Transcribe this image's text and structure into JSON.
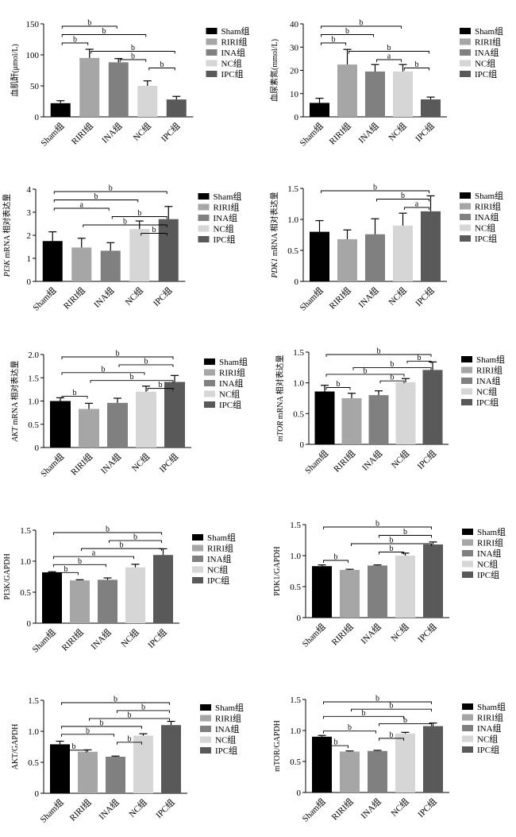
{
  "legend_items": [
    "Sham组",
    "RIRI组",
    "INA组",
    "NC组",
    "IPC组"
  ],
  "colors": [
    "#000000",
    "#a6a6a6",
    "#808080",
    "#d6d6d6",
    "#595959"
  ],
  "chart_data": [
    {
      "type": "bar",
      "ylabel": "血肌酐(μmol/L)",
      "categories": [
        "Sham组",
        "RIRI组",
        "INA组",
        "NC组",
        "IPC组"
      ],
      "values": [
        22,
        95,
        88,
        50,
        28
      ],
      "errors": [
        4,
        14,
        6,
        8,
        5
      ],
      "ylim": [
        0,
        150
      ],
      "yticks": [
        0,
        50,
        100,
        150
      ],
      "legend": [
        "Sham组",
        "RIRI组",
        "INA组",
        "NC组",
        "IPC组"
      ],
      "annotations": [
        {
          "from": 0,
          "to": 2,
          "label": "b"
        },
        {
          "from": 0,
          "to": 3,
          "label": "b"
        },
        {
          "from": 0,
          "to": 1,
          "label": "b"
        },
        {
          "from": 1,
          "to": 4,
          "label": "b"
        },
        {
          "from": 2,
          "to": 3,
          "label": "b"
        },
        {
          "from": 3,
          "to": 4,
          "label": "b"
        }
      ]
    },
    {
      "type": "bar",
      "ylabel": "血尿素氮(mmol/L)",
      "categories": [
        "Sham组",
        "RIRI组",
        "INA组",
        "NC组",
        "IPC组"
      ],
      "values": [
        6,
        22.5,
        19.5,
        19.5,
        7.5
      ],
      "errors": [
        2,
        6.5,
        3,
        3,
        1
      ],
      "ylim": [
        0,
        40
      ],
      "yticks": [
        0,
        10,
        20,
        30,
        40
      ],
      "legend": [
        "Sham组",
        "RIRI组",
        "INA组",
        "NC组",
        "IPC组"
      ],
      "annotations": [
        {
          "from": 0,
          "to": 3,
          "label": "b"
        },
        {
          "from": 0,
          "to": 2,
          "label": "b"
        },
        {
          "from": 0,
          "to": 1,
          "label": "b"
        },
        {
          "from": 1,
          "to": 4,
          "label": "b"
        },
        {
          "from": 2,
          "to": 3,
          "label": "a"
        },
        {
          "from": 3,
          "to": 4,
          "label": "b"
        }
      ]
    },
    {
      "type": "bar",
      "ylabel": "PI3K mRNA 相对表达量",
      "ylabel_italic": "PI3K",
      "ylabel_rest": " mRNA 相对表达量",
      "categories": [
        "Sham组",
        "RIRI组",
        "INA组",
        "NC组",
        "IPC组"
      ],
      "values": [
        1.75,
        1.47,
        1.33,
        2.27,
        2.7
      ],
      "errors": [
        0.4,
        0.4,
        0.35,
        0.35,
        0.55
      ],
      "ylim": [
        0,
        4
      ],
      "yticks": [
        0,
        1,
        2,
        3,
        4
      ],
      "legend": [
        "Sham组",
        "RIRI组",
        "INA组",
        "NC组",
        "IPC组"
      ],
      "annotations": [
        {
          "from": 0,
          "to": 4,
          "label": "b"
        },
        {
          "from": 0,
          "to": 3,
          "label": "b"
        },
        {
          "from": 0,
          "to": 2,
          "label": "a"
        },
        {
          "from": 2,
          "to": 4,
          "label": "b"
        },
        {
          "from": 1,
          "to": 4,
          "label": "b"
        },
        {
          "from": 3,
          "to": 4,
          "label": "b"
        }
      ]
    },
    {
      "type": "bar",
      "ylabel": "PDK1 mRNA 相对表达量",
      "ylabel_italic": "PDK1",
      "ylabel_rest": " mRNA 相对表达量",
      "categories": [
        "Sham组",
        "RIRI组",
        "INA组",
        "NC组",
        "IPC组"
      ],
      "values": [
        0.8,
        0.68,
        0.76,
        0.9,
        1.13
      ],
      "errors": [
        0.18,
        0.15,
        0.25,
        0.2,
        0.25
      ],
      "ylim": [
        0,
        1.5
      ],
      "yticks": [
        "0",
        "0.5",
        "1.0",
        "1.5"
      ],
      "legend": [
        "Sham组",
        "RIRI组",
        "INA组",
        "NC组",
        "IPC组"
      ],
      "annotations": [
        {
          "from": 0,
          "to": 4,
          "label": "b"
        },
        {
          "from": 2,
          "to": 4,
          "label": "b"
        },
        {
          "from": 3,
          "to": 4,
          "label": "a"
        }
      ]
    },
    {
      "type": "bar",
      "ylabel": "AKT mRNA 相对表达量",
      "ylabel_italic": "AKT",
      "ylabel_rest": " mRNA 相对表达量",
      "categories": [
        "Sham组",
        "RIRI组",
        "INA组",
        "NC组",
        "IPC组"
      ],
      "values": [
        1.0,
        0.83,
        0.96,
        1.2,
        1.41
      ],
      "errors": [
        0.07,
        0.12,
        0.1,
        0.12,
        0.14
      ],
      "ylim": [
        0,
        2
      ],
      "yticks": [
        "0",
        "0.5",
        "1.0",
        "1.5",
        "2.0"
      ],
      "legend": [
        "Sham组",
        "RIRI组",
        "INA组",
        "NC组",
        "IPC组"
      ],
      "annotations": [
        {
          "from": 0,
          "to": 4,
          "label": "b"
        },
        {
          "from": 2,
          "to": 4,
          "label": "b"
        },
        {
          "from": 0,
          "to": 3,
          "label": "b"
        },
        {
          "from": 1,
          "to": 4,
          "label": "b"
        },
        {
          "from": 3,
          "to": 4,
          "label": "b"
        },
        {
          "from": 0,
          "to": 1,
          "label": "b"
        }
      ]
    },
    {
      "type": "bar",
      "ylabel": "mTOR mRNA 相对表达量",
      "ylabel_italic": "mTOR",
      "ylabel_rest": " mRNA 相对表达量",
      "categories": [
        "Sham组",
        "RIRI组",
        "INA组",
        "NC组",
        "IPC组"
      ],
      "values": [
        0.86,
        0.75,
        0.8,
        1.01,
        1.21
      ],
      "errors": [
        0.1,
        0.08,
        0.07,
        0.06,
        0.13
      ],
      "ylim": [
        0,
        1.5
      ],
      "yticks": [
        "0",
        "0.5",
        "1.0",
        "1.5"
      ],
      "legend": [
        "Sham组",
        "RIRI组",
        "INA组",
        "NC组",
        "IPC组"
      ],
      "annotations": [
        {
          "from": 0,
          "to": 4,
          "label": "b"
        },
        {
          "from": 3,
          "to": 4,
          "label": "b"
        },
        {
          "from": 1,
          "to": 4,
          "label": "b"
        },
        {
          "from": 0,
          "to": 3,
          "label": "b"
        },
        {
          "from": 2,
          "to": 3,
          "label": "b"
        },
        {
          "from": 0,
          "to": 1,
          "label": "b"
        }
      ]
    },
    {
      "type": "bar",
      "ylabel": "PI3K/GAPDH",
      "categories": [
        "Sham组",
        "RIRI组",
        "INA组",
        "NC组",
        "IPC组"
      ],
      "values": [
        0.82,
        0.69,
        0.7,
        0.9,
        1.1
      ],
      "errors": [
        0.01,
        0.01,
        0.03,
        0.05,
        0.1
      ],
      "ylim": [
        0,
        1.5
      ],
      "yticks": [
        "0",
        "0.5",
        "1.0",
        "1.5"
      ],
      "legend": [
        "Sham组",
        "RIRI组",
        "INA组",
        "NC组",
        "IPC组"
      ],
      "annotations": [
        {
          "from": 0,
          "to": 4,
          "label": "b"
        },
        {
          "from": 2,
          "to": 4,
          "label": "b"
        },
        {
          "from": 1,
          "to": 4,
          "label": "b"
        },
        {
          "from": 0,
          "to": 3,
          "label": "a"
        },
        {
          "from": 0,
          "to": 2,
          "label": "b"
        },
        {
          "from": 0,
          "to": 1,
          "label": "b"
        }
      ]
    },
    {
      "type": "bar",
      "ylabel": "PDK1/GAPDH",
      "categories": [
        "Sham组",
        "RIRI组",
        "INA组",
        "NC组",
        "IPC组"
      ],
      "values": [
        0.83,
        0.77,
        0.84,
        1.0,
        1.18
      ],
      "errors": [
        0.02,
        0.01,
        0.01,
        0.04,
        0.04
      ],
      "ylim": [
        0,
        1.5
      ],
      "yticks": [
        "0",
        "0.5",
        "1.0",
        "1.5"
      ],
      "legend": [
        "Sham组",
        "RIRI组",
        "INA组",
        "NC组",
        "IPC组"
      ],
      "annotations": [
        {
          "from": 0,
          "to": 4,
          "label": "b"
        },
        {
          "from": 2,
          "to": 4,
          "label": "b"
        },
        {
          "from": 1,
          "to": 4,
          "label": "b"
        },
        {
          "from": 2,
          "to": 3,
          "label": "b"
        },
        {
          "from": 0,
          "to": 1,
          "label": "b"
        }
      ]
    },
    {
      "type": "bar",
      "ylabel": "AKT/GAPDH",
      "categories": [
        "Sham组",
        "RIRI组",
        "INA组",
        "NC组",
        "IPC组"
      ],
      "values": [
        0.79,
        0.67,
        0.59,
        0.93,
        1.1
      ],
      "errors": [
        0.05,
        0.03,
        0.01,
        0.03,
        0.06
      ],
      "ylim": [
        0,
        1.5
      ],
      "yticks": [
        "0",
        "0.5",
        "1.0",
        "1.5"
      ],
      "legend": [
        "Sham组",
        "RIRI组",
        "INA组",
        "NC组",
        "IPC组"
      ],
      "annotations": [
        {
          "from": 0,
          "to": 4,
          "label": "b"
        },
        {
          "from": 2,
          "to": 4,
          "label": "b"
        },
        {
          "from": 1,
          "to": 4,
          "label": "b"
        },
        {
          "from": 0,
          "to": 3,
          "label": "b"
        },
        {
          "from": 0,
          "to": 2,
          "label": "b"
        },
        {
          "from": 2,
          "to": 3,
          "label": "b"
        },
        {
          "from": 0,
          "to": 1,
          "label": "b"
        }
      ]
    },
    {
      "type": "bar",
      "ylabel": "mTOR/GAPDH",
      "categories": [
        "Sham组",
        "RIRI组",
        "INA组",
        "NC组",
        "IPC组"
      ],
      "values": [
        0.9,
        0.66,
        0.67,
        0.95,
        1.07
      ],
      "errors": [
        0.02,
        0.01,
        0.01,
        0.02,
        0.05
      ],
      "ylim": [
        0,
        1.5
      ],
      "yticks": [
        "0",
        "0.5",
        "1.0",
        "1.5"
      ],
      "legend": [
        "Sham组",
        "RIRI组",
        "INA组",
        "NC组",
        "IPC组"
      ],
      "annotations": [
        {
          "from": 0,
          "to": 4,
          "label": "b"
        },
        {
          "from": 1,
          "to": 4,
          "label": "b"
        },
        {
          "from": 0,
          "to": 3,
          "label": "b"
        },
        {
          "from": 2,
          "to": 4,
          "label": "b"
        },
        {
          "from": 0,
          "to": 2,
          "label": "b"
        },
        {
          "from": 2,
          "to": 3,
          "label": "b"
        },
        {
          "from": 0,
          "to": 1,
          "label": "b"
        }
      ]
    }
  ]
}
